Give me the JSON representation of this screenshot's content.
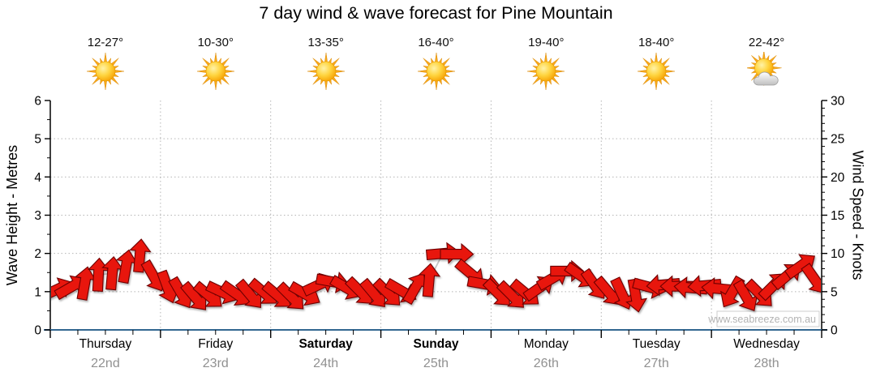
{
  "watermark": "www.seabreeze.com.au",
  "colors": {
    "arrow": "#e8150f",
    "arrow_outline": "#6e0000",
    "axis_bottom": "#336791",
    "axis": "#000000",
    "grid": "#b5b5b5",
    "connector": "#c6c6c6",
    "date_gray": "#919191",
    "watermark_text": "#b3b3b3",
    "watermark_border": "#cccccc",
    "sun_core": "#f6a000",
    "sun_ray": "#f7a81b"
  },
  "days": [
    {
      "name": "Thursday",
      "date": "22nd",
      "temp": "12-27°",
      "icon": "sunny",
      "weekend": false
    },
    {
      "name": "Friday",
      "date": "23rd",
      "temp": "10-30°",
      "icon": "sunny",
      "weekend": false
    },
    {
      "name": "Saturday",
      "date": "24th",
      "temp": "13-35°",
      "icon": "sunny",
      "weekend": true
    },
    {
      "name": "Sunday",
      "date": "25th",
      "temp": "16-40°",
      "icon": "sunny",
      "weekend": true
    },
    {
      "name": "Monday",
      "date": "26th",
      "temp": "19-40°",
      "icon": "sunny",
      "weekend": false
    },
    {
      "name": "Tuesday",
      "date": "27th",
      "temp": "18-40°",
      "icon": "sunny",
      "weekend": false
    },
    {
      "name": "Wednesday",
      "date": "28th",
      "temp": "22-42°",
      "icon": "partly-cloudy",
      "weekend": false
    }
  ],
  "chart_data": {
    "type": "wind-arrow-series",
    "title": "7 day wind & wave forecast for Pine Mountain",
    "x_axis": {
      "categories": [
        "Thursday 22nd",
        "Friday 23rd",
        "Saturday 24th",
        "Sunday 25th",
        "Monday 26th",
        "Tuesday 27th",
        "Wednesday 28th"
      ],
      "points_per_day": 8,
      "interval_hours": 3
    },
    "left_axis": {
      "label": "Wave Height - Metres",
      "min": 0,
      "max": 6,
      "major_tick": 1,
      "minor_tick": 0.5
    },
    "right_axis": {
      "label": "Wind Speed - Knots",
      "min": 0,
      "max": 30,
      "major_tick": 5,
      "minor_tick": 1
    },
    "dir_convention": "screen degrees: 0 = arrow points right (east), positive = clockwise, -90 = up",
    "series": [
      {
        "day": "Thursday",
        "knots": [
          5.3,
          5.6,
          6.1,
          7.2,
          7.4,
          8.3,
          9.7,
          7.0
        ],
        "dir_deg": [
          -25,
          -30,
          -80,
          -87,
          -85,
          -80,
          -85,
          60
        ]
      },
      {
        "day": "Friday",
        "knots": [
          5.6,
          4.8,
          4.3,
          4.5,
          4.9,
          4.7,
          4.6,
          4.9
        ],
        "dir_deg": [
          70,
          60,
          50,
          40,
          25,
          35,
          50,
          40
        ]
      },
      {
        "day": "Saturday",
        "knots": [
          4.5,
          4.3,
          4.7,
          5.9,
          6.3,
          5.5,
          5.0,
          4.7
        ],
        "dir_deg": [
          40,
          45,
          30,
          -25,
          10,
          30,
          45,
          50
        ]
      },
      {
        "day": "Sunday",
        "knots": [
          4.8,
          5.1,
          5.5,
          6.5,
          10.0,
          9.9,
          7.4,
          6.0
        ],
        "dir_deg": [
          45,
          30,
          -60,
          -85,
          -5,
          0,
          40,
          10
        ]
      },
      {
        "day": "Monday",
        "knots": [
          4.8,
          4.5,
          4.8,
          5.5,
          6.8,
          7.7,
          7.1,
          5.9
        ],
        "dir_deg": [
          45,
          45,
          40,
          -35,
          -30,
          0,
          35,
          55
        ]
      },
      {
        "day": "Tuesday",
        "knots": [
          5.0,
          4.7,
          4.5,
          5.6,
          5.9,
          5.7,
          5.5,
          5.8
        ],
        "dir_deg": [
          50,
          65,
          80,
          15,
          175,
          180,
          185,
          175
        ]
      },
      {
        "day": "Wednesday",
        "knots": [
          5.4,
          4.9,
          4.4,
          4.7,
          5.8,
          7.1,
          8.4,
          6.6
        ],
        "dir_deg": [
          185,
          120,
          60,
          45,
          -45,
          -40,
          -35,
          55
        ]
      }
    ]
  }
}
